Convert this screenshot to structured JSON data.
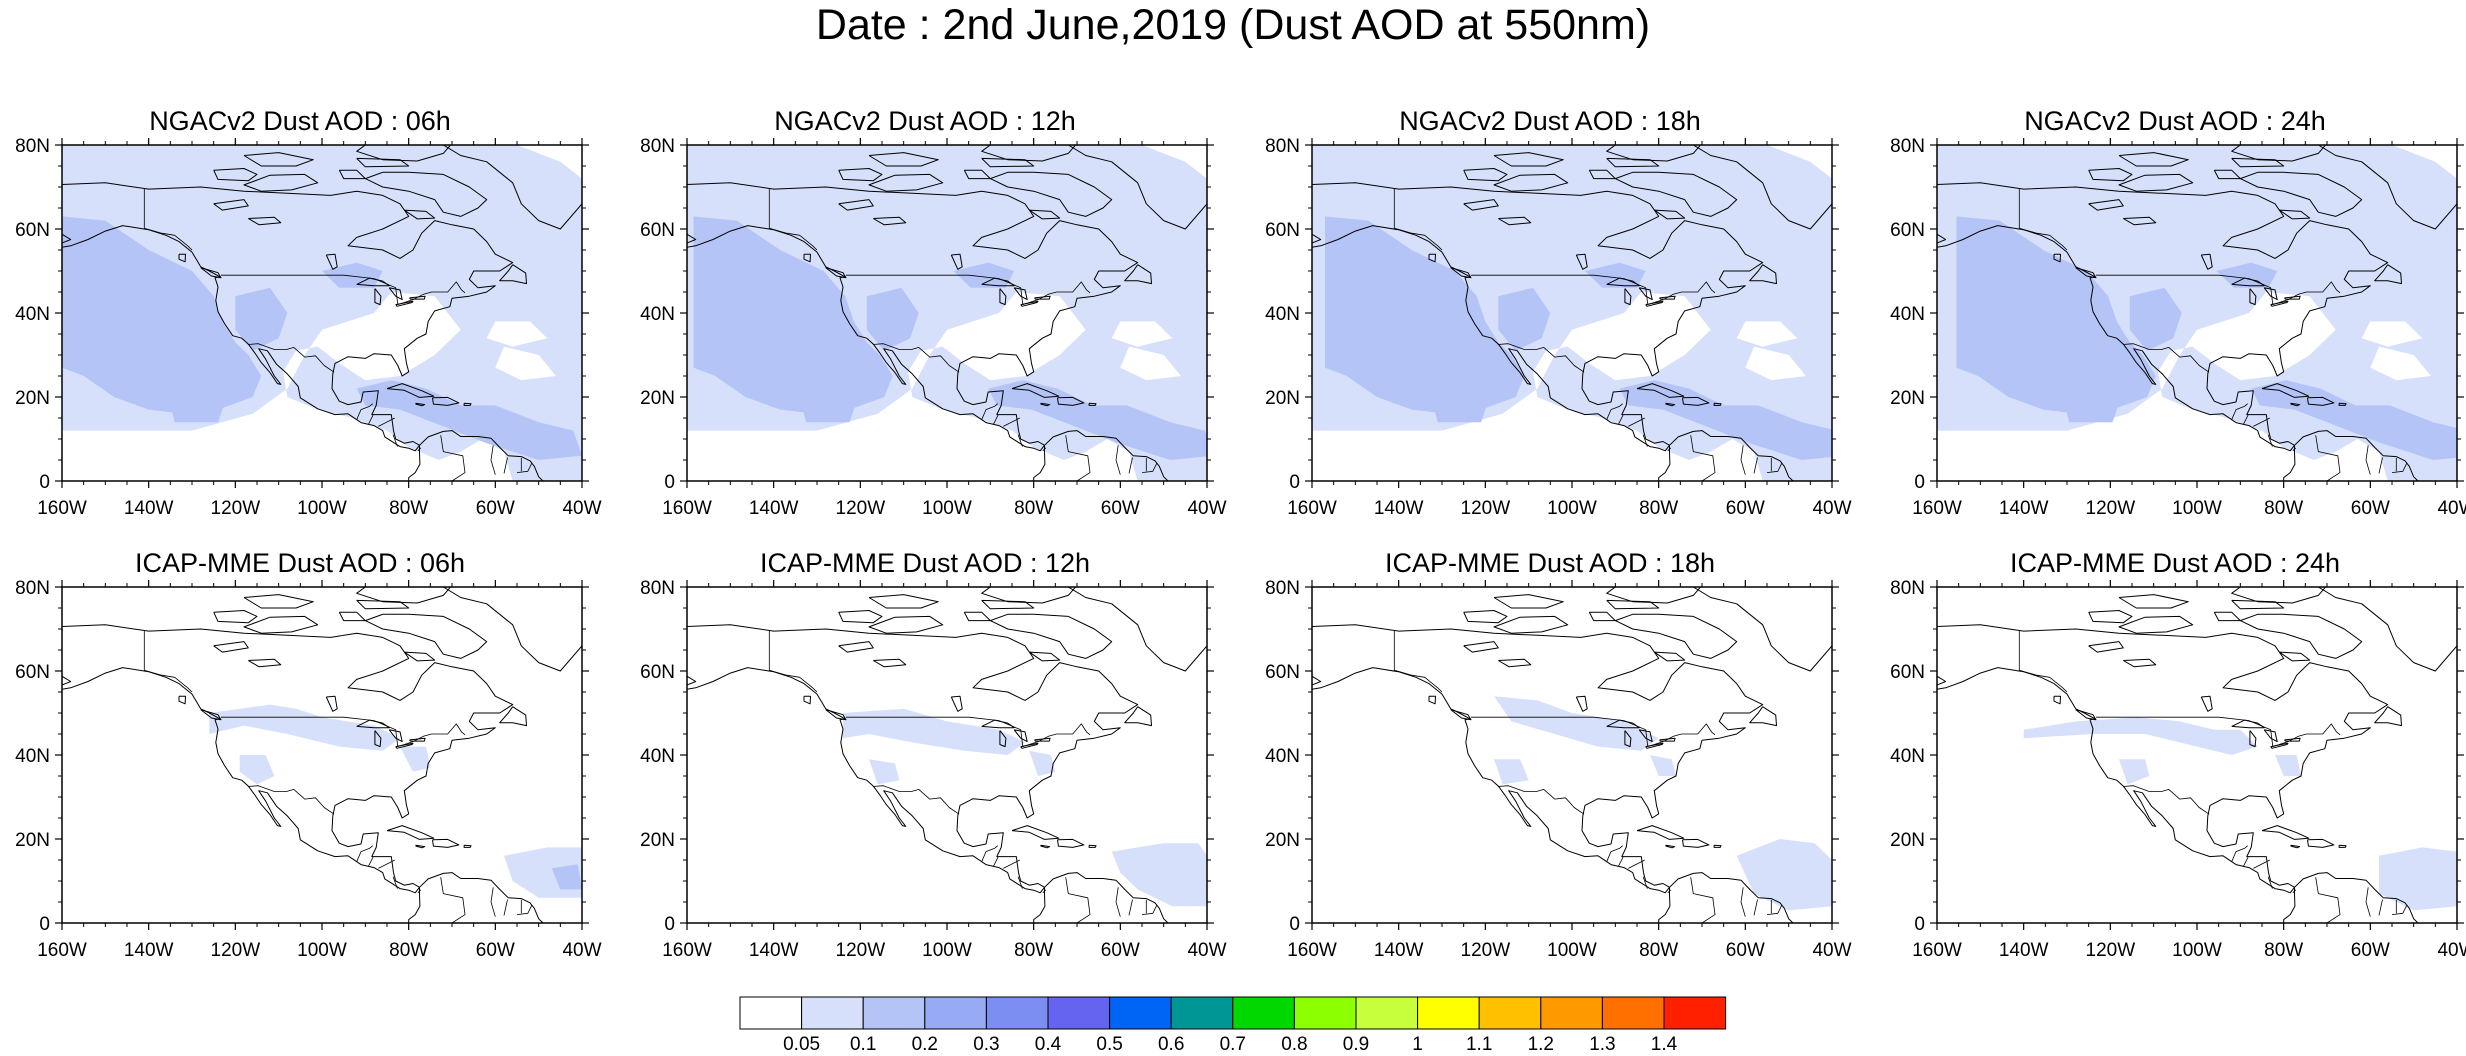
{
  "title": "Date : 2nd June,2019 (Dust AOD at 550nm)",
  "axes": {
    "lon_labels": [
      "160W",
      "140W",
      "120W",
      "100W",
      "80W",
      "60W",
      "40W"
    ],
    "lat_labels": [
      "0",
      "20N",
      "40N",
      "60N",
      "80N"
    ],
    "lon_range": [
      -160,
      -40
    ],
    "lat_range": [
      0,
      80
    ]
  },
  "panels": [
    {
      "id": "ngac-06",
      "title": "NGACv2 Dust AOD : 06h",
      "model": "ngac",
      "lead_hours": 6
    },
    {
      "id": "ngac-12",
      "title": "NGACv2 Dust AOD : 12h",
      "model": "ngac",
      "lead_hours": 12
    },
    {
      "id": "ngac-18",
      "title": "NGACv2 Dust AOD : 18h",
      "model": "ngac",
      "lead_hours": 18
    },
    {
      "id": "ngac-24",
      "title": "NGACv2 Dust AOD : 24h",
      "model": "ngac",
      "lead_hours": 24
    },
    {
      "id": "icap-06",
      "title": "ICAP-MME Dust AOD : 06h",
      "model": "icap",
      "lead_hours": 6
    },
    {
      "id": "icap-12",
      "title": "ICAP-MME Dust AOD : 12h",
      "model": "icap",
      "lead_hours": 12
    },
    {
      "id": "icap-18",
      "title": "ICAP-MME Dust AOD : 18h",
      "model": "icap",
      "lead_hours": 18
    },
    {
      "id": "icap-24",
      "title": "ICAP-MME Dust AOD : 24h",
      "model": "icap",
      "lead_hours": 24
    }
  ],
  "colorbar": {
    "labels": [
      "0.05",
      "0.1",
      "0.2",
      "0.3",
      "0.4",
      "0.5",
      "0.6",
      "0.7",
      "0.8",
      "0.9",
      "1",
      "1.1",
      "1.2",
      "1.3",
      "1.4"
    ],
    "colors": [
      "#ffffff",
      "#d6e0fa",
      "#b4c4f6",
      "#96abf4",
      "#7d8ef2",
      "#6464f0",
      "#0064f5",
      "#009696",
      "#00d800",
      "#8cff00",
      "#c8ff3c",
      "#ffff00",
      "#ffc000",
      "#ff9900",
      "#ff7000",
      "#ff2000"
    ]
  },
  "shading_colors": {
    "level_1": "#d6e0fa",
    "level_2": "#b4c4f6"
  }
}
